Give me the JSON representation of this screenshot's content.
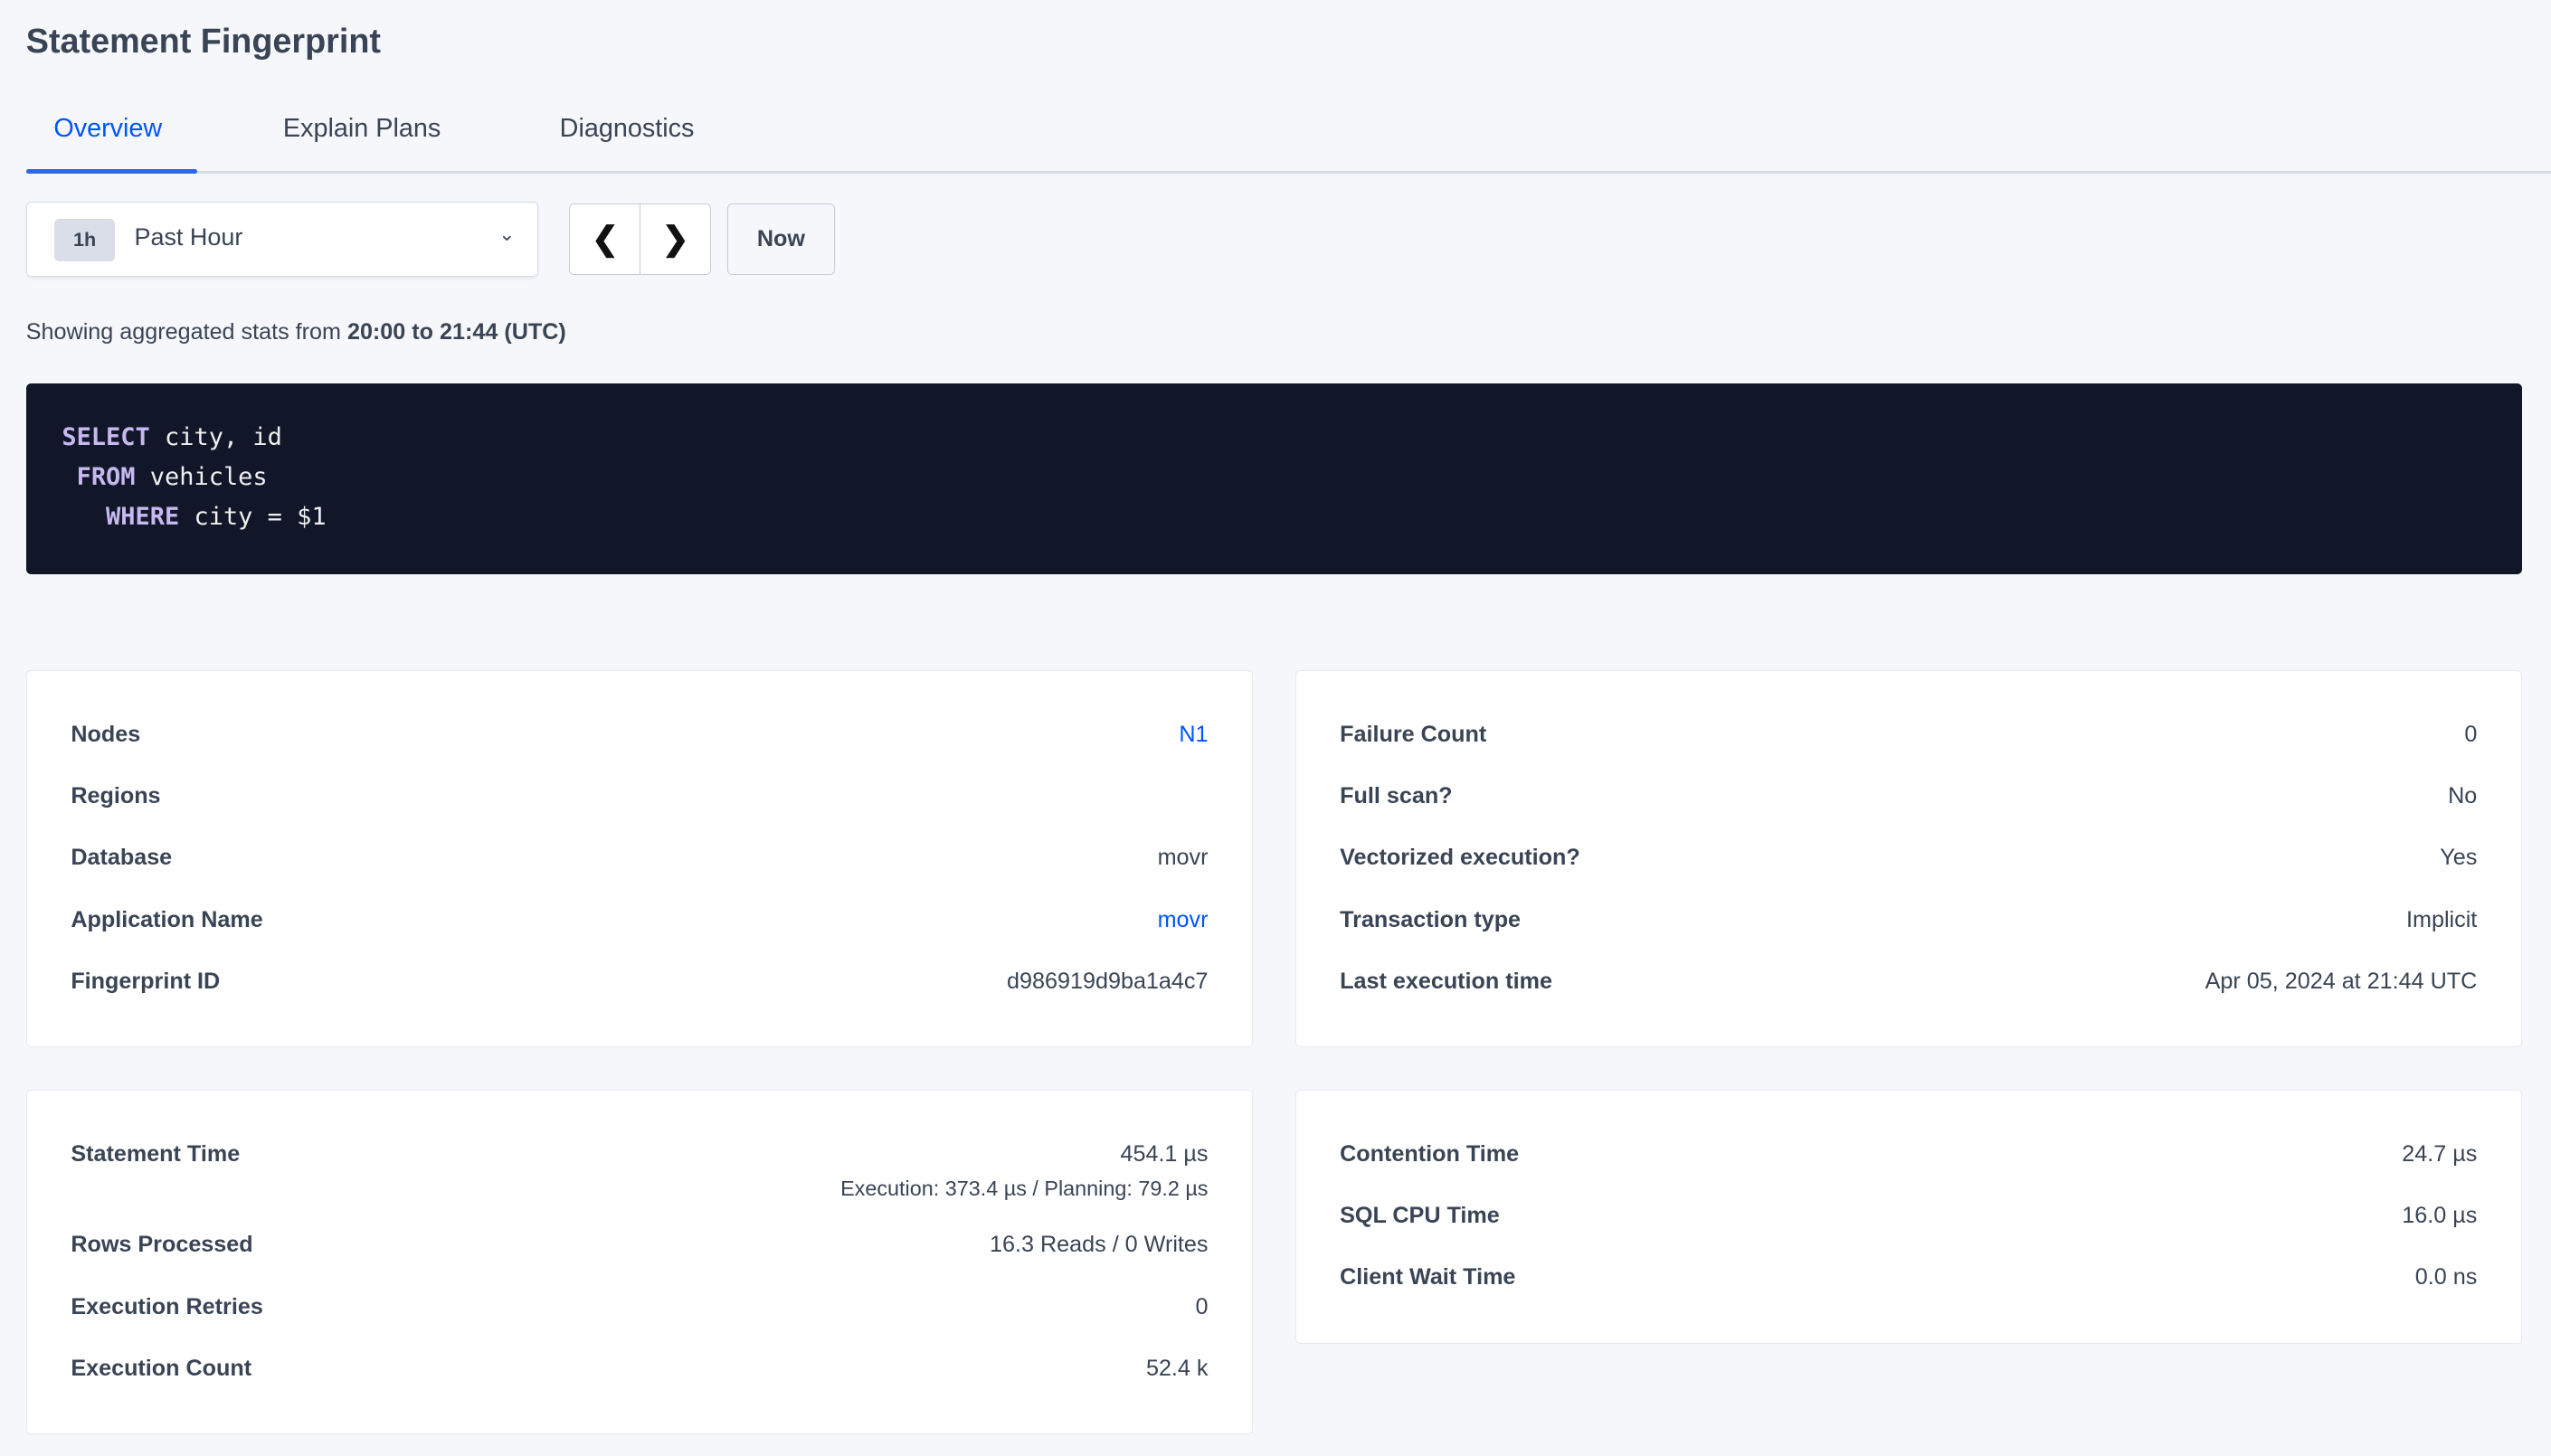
{
  "page_title": "Statement Fingerprint",
  "tabs": [
    {
      "label": "Overview",
      "active": true
    },
    {
      "label": "Explain Plans",
      "active": false
    },
    {
      "label": "Diagnostics",
      "active": false
    }
  ],
  "time_picker": {
    "badge": "1h",
    "selected": "Past Hour",
    "icon": "chevron-down-icon"
  },
  "nav": {
    "prev_icon": "chevron-left-icon",
    "next_icon": "chevron-right-icon",
    "now_label": "Now"
  },
  "caption": {
    "prefix": "Showing aggregated stats from ",
    "range": "20:00 to 21:44 (UTC)"
  },
  "sql": [
    {
      "indent": "",
      "keyword": "SELECT",
      "rest": " city, id"
    },
    {
      "indent": " ",
      "keyword": "FROM",
      "rest": " vehicles"
    },
    {
      "indent": "   ",
      "keyword": "WHERE",
      "rest": " city = $1"
    }
  ],
  "card_info_left": [
    {
      "label": "Nodes",
      "value": "N1",
      "link": true
    },
    {
      "label": "Regions",
      "value": ""
    },
    {
      "label": "Database",
      "value": "movr"
    },
    {
      "label": "Application Name",
      "value": "movr",
      "link": true
    },
    {
      "label": "Fingerprint ID",
      "value": "d986919d9ba1a4c7"
    }
  ],
  "card_info_right": [
    {
      "label": "Failure Count",
      "value": "0"
    },
    {
      "label": "Full scan?",
      "value": "No"
    },
    {
      "label": "Vectorized execution?",
      "value": "Yes"
    },
    {
      "label": "Transaction type",
      "value": "Implicit"
    },
    {
      "label": "Last execution time",
      "value": "Apr 05, 2024 at 21:44 UTC"
    }
  ],
  "card_stats_left": [
    {
      "label": "Statement Time",
      "value": "454.1 µs",
      "sub": "Execution: 373.4 µs / Planning: 79.2 µs"
    },
    {
      "label": "Rows Processed",
      "value": "16.3 Reads / 0 Writes"
    },
    {
      "label": "Execution Retries",
      "value": "0"
    },
    {
      "label": "Execution Count",
      "value": "52.4 k"
    }
  ],
  "card_stats_right": [
    {
      "label": "Contention Time",
      "value": "24.7 µs"
    },
    {
      "label": "SQL CPU Time",
      "value": "16.0 µs"
    },
    {
      "label": "Client Wait Time",
      "value": "0.0 ns"
    }
  ],
  "colors": {
    "accent": "#0055ff",
    "code_bg": "#111729",
    "keyword": "#c8b8f0",
    "page_bg": "#f5f7fa"
  }
}
